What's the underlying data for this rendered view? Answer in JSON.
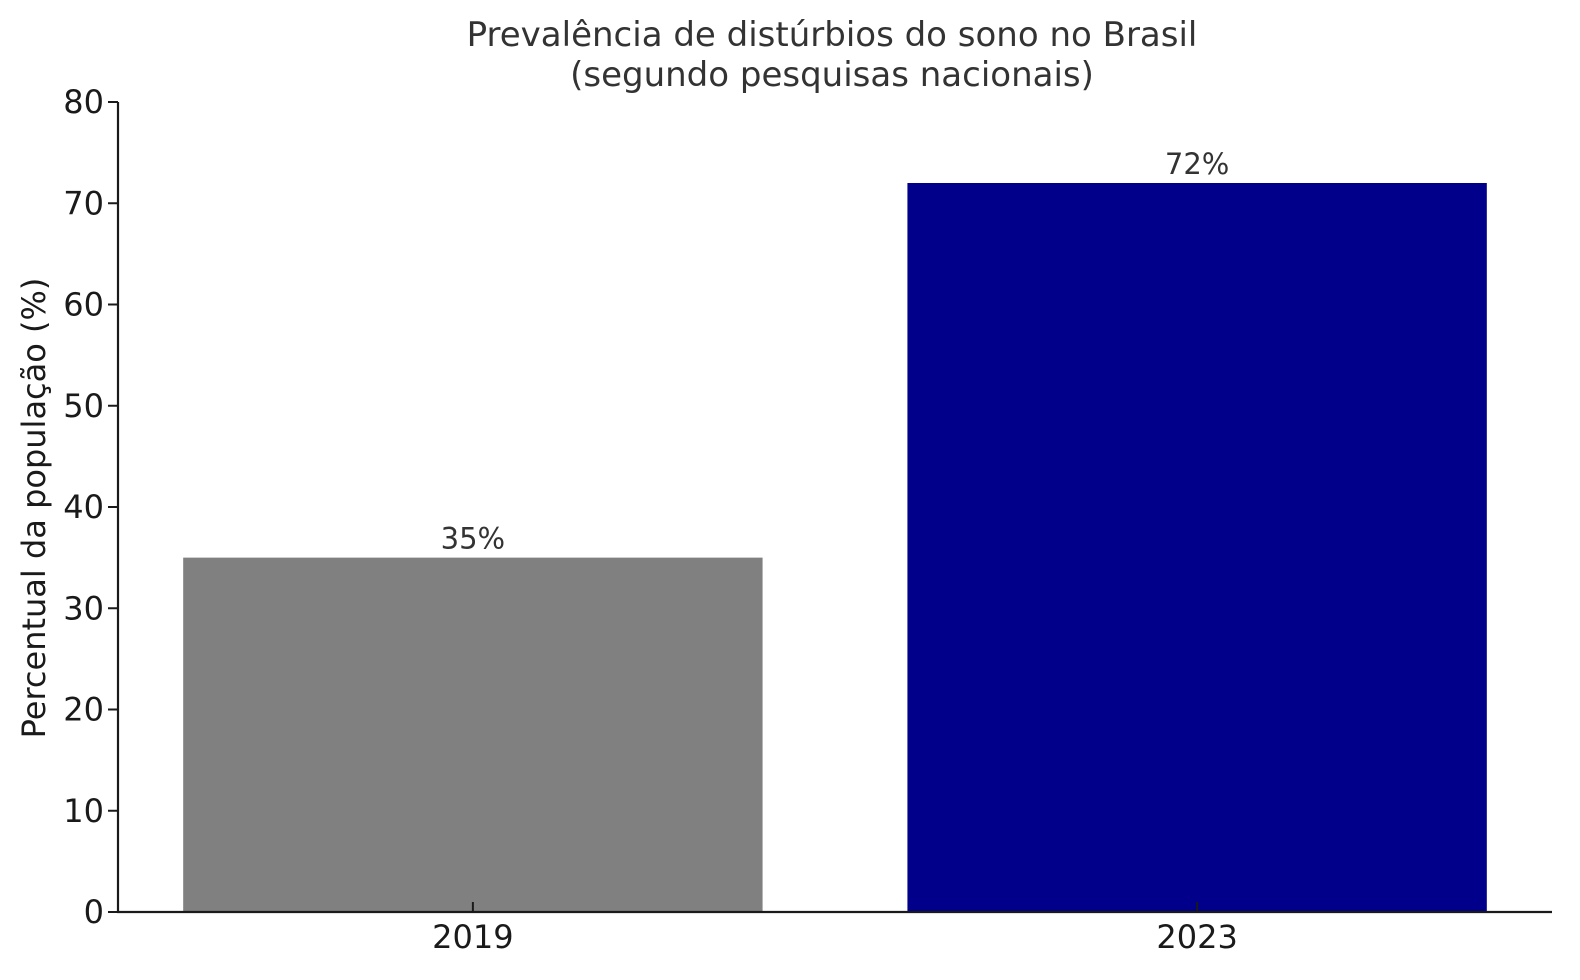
{
  "chart_data": {
    "type": "bar",
    "title": "Prevalência de distúrbios do sono no Brasil",
    "subtitle": "(segundo pesquisas nacionais)",
    "xlabel": "",
    "ylabel": "Percentual da população (%)",
    "categories": [
      "2019",
      "2023"
    ],
    "values": [
      35,
      72
    ],
    "data_labels": [
      "35%",
      "72%"
    ],
    "bar_colors": [
      "#808080",
      "#00008b"
    ],
    "ylim": [
      0,
      80
    ],
    "yticks": [
      0,
      10,
      20,
      30,
      40,
      50,
      60,
      70,
      80
    ],
    "grid": false,
    "legend": "none"
  }
}
